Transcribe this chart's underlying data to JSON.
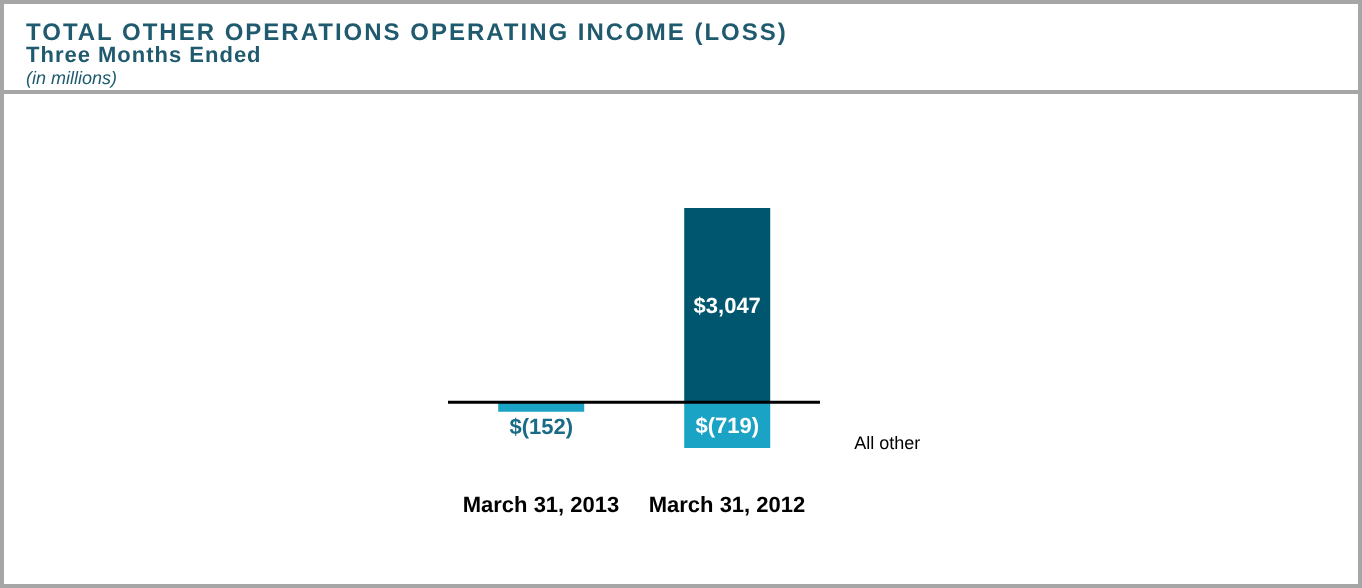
{
  "chart_data": {
    "type": "bar",
    "title": "TOTAL OTHER OPERATIONS OPERATING INCOME (LOSS)",
    "subtitle": "Three Months Ended",
    "annotations": [
      "(in millions)"
    ],
    "categories": [
      "March 31, 2013",
      "March 31, 2012"
    ],
    "stacked": true,
    "series": [
      {
        "color": "#00566e",
        "values": [
          null,
          3047
        ],
        "value_labels": [
          null,
          "$3,047"
        ]
      },
      {
        "name": "All other",
        "color": "#1ba3c6",
        "values": [
          -152,
          -719
        ],
        "value_labels": [
          "$(152)",
          "$(719)"
        ]
      }
    ]
  }
}
